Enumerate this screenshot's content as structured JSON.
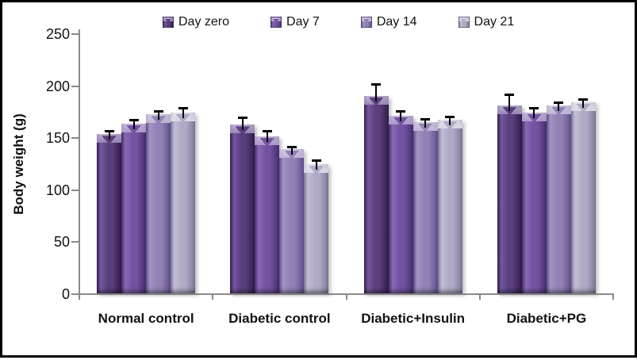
{
  "figure": {
    "background": "#ffffff",
    "border_color": "#000000"
  },
  "chart_data": {
    "type": "bar",
    "title": "",
    "ylabel": "Body weight (g)",
    "xlabel": "",
    "ylim": [
      0,
      250
    ],
    "yticks": [
      0,
      50,
      100,
      150,
      200,
      250
    ],
    "grid": false,
    "legend_position": "top-center",
    "axis_color": "#8a8a8a",
    "text_color": "#111111",
    "error_bar_color": "#000000",
    "categories": [
      "Normal control",
      "Diabetic control",
      "Diabetic+Insulin",
      "Diabetic+PG"
    ],
    "series": [
      {
        "name": "Day zero",
        "values": [
          153,
          162,
          190,
          181
        ],
        "errors": [
          3,
          7,
          11,
          10
        ],
        "colors": {
          "edge": "#35204f",
          "mid": "#5a3f7d",
          "light": "#75589f",
          "rim": "#9a86bb"
        }
      },
      {
        "name": "Day 7",
        "values": [
          163,
          151,
          171,
          174
        ],
        "errors": [
          4,
          5,
          4,
          4
        ],
        "colors": {
          "edge": "#4a3273",
          "mid": "#7353a1",
          "light": "#8968b4",
          "rim": "#ab97cb"
        }
      },
      {
        "name": "Day 14",
        "values": [
          172,
          139,
          165,
          181
        ],
        "errors": [
          3,
          2,
          3,
          3
        ],
        "colors": {
          "edge": "#665593",
          "mid": "#9181b4",
          "light": "#a393c3",
          "rim": "#c0b4d6"
        }
      },
      {
        "name": "Day 21",
        "values": [
          174,
          124,
          167,
          184
        ],
        "errors": [
          4,
          4,
          3,
          3
        ],
        "colors": {
          "edge": "#847da0",
          "mid": "#b1aac6",
          "light": "#c2bdd4",
          "rim": "#dbd7e6"
        }
      }
    ]
  }
}
